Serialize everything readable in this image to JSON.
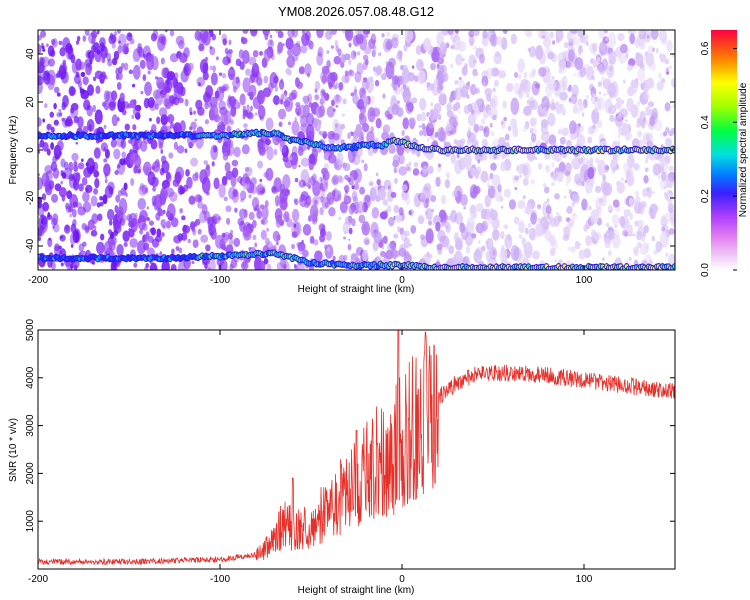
{
  "title": "YM08.2026.057.08.48.G12",
  "colors": {
    "snr_line": "#e8302a",
    "spectro_base": "#7a1cf0",
    "colorbar": [
      "#f5c8f0",
      "#ff2bd0",
      "#d830ff",
      "#7a1cff",
      "#2a2aff",
      "#00c8ff",
      "#00ff80",
      "#80ff00",
      "#ffff00",
      "#ffa000",
      "#ff4000",
      "#ff0060"
    ]
  },
  "chart_data": [
    {
      "type": "heatmap",
      "name": "spectrogram",
      "title": "YM08.2026.057.08.48.G12",
      "xlabel": "Height of straight line (km)",
      "ylabel": "Frequency (Hz)",
      "xlim": [
        -200,
        150
      ],
      "ylim": [
        -50,
        50
      ],
      "x_ticks": [
        -200,
        -100,
        0,
        100
      ],
      "x_tick_labels": [
        "-200",
        "-100",
        "0",
        "100"
      ],
      "y_ticks": [
        -40,
        -20,
        0,
        20,
        40
      ],
      "y_tick_labels": [
        "-40",
        "-20",
        "0",
        "20",
        "40"
      ],
      "colorbar": {
        "label": "Normalized spectral amplitude",
        "range": [
          0.0,
          0.65
        ],
        "ticks": [
          0.0,
          0.2,
          0.4,
          0.6
        ],
        "tick_labels": [
          "0.0",
          "0.2",
          "0.4",
          "0.6"
        ]
      },
      "ridges": [
        {
          "name": "main-line",
          "points": [
            [
              -200,
              6
            ],
            [
              -130,
              6
            ],
            [
              -100,
              6
            ],
            [
              -80,
              7
            ],
            [
              -70,
              7
            ],
            [
              -60,
              4
            ],
            [
              -50,
              3
            ],
            [
              -40,
              1
            ],
            [
              -30,
              1
            ],
            [
              -20,
              2
            ],
            [
              -10,
              2
            ],
            [
              -5,
              4
            ],
            [
              0,
              3
            ],
            [
              10,
              1
            ],
            [
              20,
              0
            ],
            [
              60,
              0
            ],
            [
              100,
              0
            ],
            [
              150,
              0
            ]
          ]
        },
        {
          "name": "aliased-line",
          "points": [
            [
              -200,
              -45
            ],
            [
              -130,
              -45
            ],
            [
              -90,
              -44
            ],
            [
              -70,
              -43
            ],
            [
              -60,
              -45
            ],
            [
              -50,
              -47
            ],
            [
              -30,
              -48
            ],
            [
              -10,
              -48
            ],
            [
              0,
              -48
            ],
            [
              20,
              -49
            ],
            [
              60,
              -49
            ],
            [
              100,
              -49
            ],
            [
              150,
              -49
            ]
          ]
        }
      ]
    },
    {
      "type": "line",
      "name": "snr",
      "xlabel": "Height of straight line (km)",
      "ylabel": "SNR (10 * v/v)",
      "xlim": [
        -200,
        150
      ],
      "ylim": [
        0,
        5000
      ],
      "x_ticks": [
        -200,
        -100,
        0,
        100
      ],
      "x_tick_labels": [
        "-200",
        "-100",
        "0",
        "100"
      ],
      "y_ticks": [
        1000,
        2000,
        3000,
        4000,
        5000
      ],
      "y_tick_labels": [
        "1000",
        "2000",
        "3000",
        "4000",
        "5000"
      ],
      "series": [
        {
          "name": "SNR",
          "envelope": {
            "x": [
              -200,
              -150,
              -120,
              -100,
              -90,
              -80,
              -70,
              -65,
              -60,
              -50,
              -40,
              -30,
              -20,
              -15,
              -10,
              -5,
              0,
              10,
              20,
              30,
              40,
              50,
              60,
              80,
              100,
              120,
              150
            ],
            "y": [
              150,
              150,
              180,
              200,
              250,
              300,
              600,
              1000,
              800,
              900,
              1300,
              1600,
              2000,
              2200,
              2300,
              2400,
              2700,
              3100,
              3600,
              3900,
              4050,
              4100,
              4100,
              4050,
              3950,
              3850,
              3700
            ]
          },
          "spikes": [
            [
              -60,
              1900
            ],
            [
              -2,
              5000
            ],
            [
              -25,
              2900
            ]
          ]
        }
      ]
    }
  ]
}
